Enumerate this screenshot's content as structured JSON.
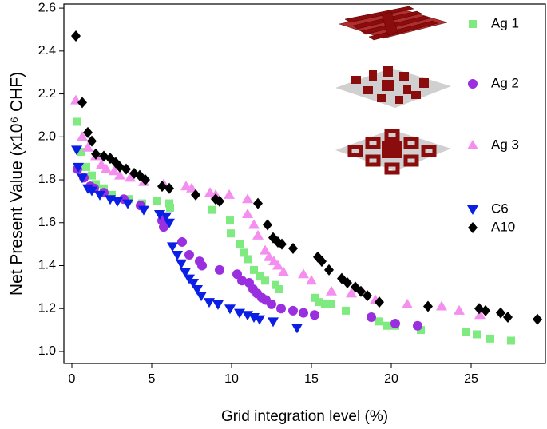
{
  "chart_data": {
    "type": "scatter",
    "x_label": "Grid integration level (%)",
    "y_label": "Net Present Value (x10⁶ CHF)",
    "xlim": [
      -0.5,
      29.65
    ],
    "ylim": [
      0.944,
      2.619
    ],
    "xticks": [
      0,
      5,
      10,
      15,
      20,
      25
    ],
    "yticks": [
      {
        "value": 1,
        "label": "1.0"
      },
      1.2,
      1.4,
      1.6,
      1.8,
      {
        "value": 2,
        "label": "2.0"
      },
      2.2,
      2.4,
      2.6
    ],
    "series": [
      {
        "name": "Ag 1",
        "color": "#7fea7f",
        "marker": "square",
        "x": [
          0.3,
          0.6,
          0.9,
          1.25,
          1.5,
          2.0,
          2.5,
          3.6,
          4.4,
          5.35,
          6.1,
          6.15,
          8.75,
          9.9,
          9.95,
          10.5,
          10.75,
          11.0,
          11.4,
          11.75,
          12.1,
          12.75,
          13.0,
          15.25,
          15.5,
          15.85,
          16.25,
          17.15,
          19.25,
          19.75,
          20.25,
          21.85,
          24.65,
          25.35,
          26.2,
          27.5
        ],
        "values": [
          2.07,
          1.93,
          1.86,
          1.82,
          1.78,
          1.76,
          1.73,
          1.71,
          1.69,
          1.7,
          1.69,
          1.67,
          1.66,
          1.61,
          1.55,
          1.5,
          1.46,
          1.43,
          1.38,
          1.35,
          1.33,
          1.31,
          1.29,
          1.25,
          1.23,
          1.22,
          1.22,
          1.19,
          1.14,
          1.12,
          1.12,
          1.1,
          1.09,
          1.08,
          1.06,
          1.05
        ]
      },
      {
        "name": "Ag 2",
        "color": "#9a2fe0",
        "marker": "circle",
        "x": [
          0.35,
          0.75,
          1.15,
          1.4,
          2.0,
          3.25,
          4.3,
          5.65,
          5.75,
          6.9,
          7.35,
          8.0,
          8.15,
          9.25,
          10.35,
          10.65,
          11.1,
          11.35,
          11.6,
          11.9,
          12.15,
          12.5,
          13.1,
          13.85,
          14.5,
          15.2,
          18.75,
          20.25,
          21.65
        ],
        "values": [
          1.85,
          1.81,
          1.77,
          1.76,
          1.74,
          1.71,
          1.68,
          1.61,
          1.58,
          1.51,
          1.45,
          1.42,
          1.4,
          1.38,
          1.36,
          1.33,
          1.32,
          1.29,
          1.27,
          1.25,
          1.24,
          1.22,
          1.2,
          1.19,
          1.18,
          1.17,
          1.16,
          1.13,
          1.12
        ]
      },
      {
        "name": "Ag 3",
        "color": "#f48ff0",
        "marker": "triangle-up",
        "x": [
          0.25,
          0.65,
          1.0,
          1.5,
          1.85,
          2.15,
          2.65,
          3.0,
          3.65,
          4.5,
          5.75,
          7.15,
          7.5,
          8.65,
          9.0,
          9.85,
          11.0,
          11.0,
          11.4,
          11.65,
          12.1,
          12.35,
          12.65,
          12.9,
          13.25,
          14.5,
          15.0,
          16.25,
          17.5,
          19.0,
          21.0,
          23.15,
          24.25,
          25.55
        ],
        "values": [
          2.17,
          2.0,
          1.95,
          1.91,
          1.87,
          1.85,
          1.84,
          1.82,
          1.81,
          1.79,
          1.78,
          1.77,
          1.76,
          1.74,
          1.73,
          1.73,
          1.71,
          1.64,
          1.59,
          1.54,
          1.47,
          1.44,
          1.42,
          1.4,
          1.37,
          1.36,
          1.33,
          1.28,
          1.27,
          1.24,
          1.22,
          1.21,
          1.19,
          1.17
        ]
      },
      {
        "name": "C6",
        "color": "#0a1ee6",
        "marker": "triangle-down",
        "x": [
          0.3,
          0.4,
          0.65,
          1.0,
          1.25,
          1.75,
          2.4,
          2.85,
          3.5,
          4.5,
          5.5,
          5.9,
          6.1,
          6.3,
          6.6,
          6.85,
          7.1,
          7.35,
          7.6,
          7.85,
          8.1,
          8.6,
          9.15,
          9.9,
          10.5,
          11.0,
          11.4,
          11.75,
          12.6,
          14.1
        ],
        "values": [
          1.94,
          1.86,
          1.81,
          1.76,
          1.75,
          1.73,
          1.71,
          1.7,
          1.69,
          1.66,
          1.64,
          1.63,
          1.6,
          1.49,
          1.45,
          1.41,
          1.37,
          1.34,
          1.32,
          1.29,
          1.26,
          1.23,
          1.22,
          1.2,
          1.18,
          1.17,
          1.16,
          1.15,
          1.14,
          1.11
        ]
      },
      {
        "name": "A10",
        "color": "#000000",
        "marker": "diamond",
        "x": [
          0.25,
          0.65,
          1.0,
          1.25,
          1.5,
          2.0,
          2.4,
          2.75,
          3.0,
          3.4,
          3.9,
          4.25,
          4.6,
          5.65,
          6.1,
          7.75,
          9.0,
          9.25,
          11.65,
          12.25,
          12.6,
          12.9,
          13.15,
          13.85,
          15.4,
          15.65,
          16.1,
          16.9,
          17.25,
          17.75,
          18.1,
          18.5,
          19.25,
          22.3,
          25.5,
          25.9,
          26.85,
          27.3,
          29.15
        ],
        "values": [
          2.47,
          2.16,
          2.02,
          1.98,
          1.92,
          1.91,
          1.9,
          1.88,
          1.86,
          1.85,
          1.83,
          1.82,
          1.8,
          1.77,
          1.76,
          1.73,
          1.71,
          1.7,
          1.69,
          1.59,
          1.53,
          1.51,
          1.5,
          1.48,
          1.44,
          1.42,
          1.38,
          1.34,
          1.32,
          1.3,
          1.28,
          1.26,
          1.23,
          1.21,
          1.2,
          1.19,
          1.18,
          1.16,
          1.15
        ]
      }
    ]
  }
}
